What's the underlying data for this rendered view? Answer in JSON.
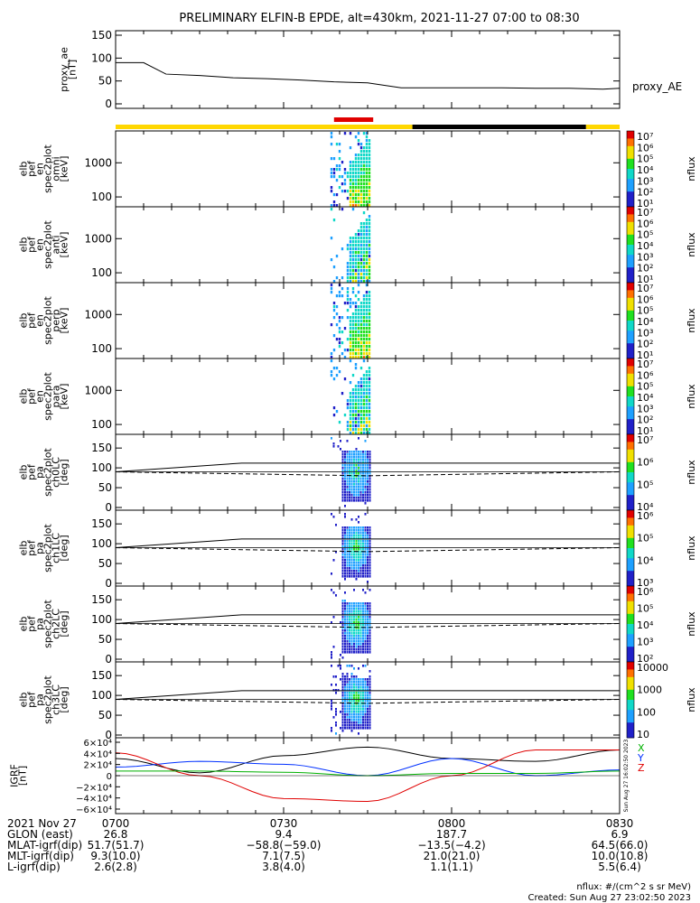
{
  "title": "PRELIMINARY ELFIN-B EPDE, alt=430km, 2021-11-27 07:00 to 08:30",
  "colors": {
    "sci_yellow": "#ffd700",
    "sci_black": "#000000",
    "sci_red": "#e00000",
    "igrf_x": "#000000",
    "igrf_y": "#0030ff",
    "igrf_z": "#e00000",
    "igrf_total": "#00b000"
  },
  "panels": {
    "ae": {
      "ylabel": [
        "proxy_ae",
        "[nT]"
      ],
      "yticks": [
        "150",
        "100",
        "50",
        "0"
      ],
      "legend": "proxy_AE"
    },
    "spec": [
      {
        "ylabel": [
          "elb",
          "pef",
          "en",
          "spec2plot",
          "omni",
          "[keV]"
        ],
        "yticks": [
          "1000",
          "100"
        ],
        "cbticks": [
          "10⁷",
          "10⁶",
          "10⁵",
          "10⁴",
          "10³",
          "10²",
          "10¹"
        ],
        "cblabel": "nflux"
      },
      {
        "ylabel": [
          "elb",
          "pef",
          "en",
          "spec2plot",
          "anti",
          "[keV]"
        ],
        "yticks": [
          "1000",
          "100"
        ],
        "cbticks": [
          "10⁷",
          "10⁶",
          "10⁵",
          "10⁴",
          "10³",
          "10²",
          "10¹"
        ],
        "cblabel": "nflux"
      },
      {
        "ylabel": [
          "elb",
          "pef",
          "en",
          "spec2plot",
          "perp",
          "[keV]"
        ],
        "yticks": [
          "1000",
          "100"
        ],
        "cbticks": [
          "10⁷",
          "10⁶",
          "10⁵",
          "10⁴",
          "10³",
          "10²",
          "10¹"
        ],
        "cblabel": "nflux"
      },
      {
        "ylabel": [
          "elb",
          "pef",
          "en",
          "spec2plot",
          "para",
          "[keV]"
        ],
        "yticks": [
          "1000",
          "100"
        ],
        "cbticks": [
          "10⁷",
          "10⁶",
          "10⁵",
          "10⁴",
          "10³",
          "10²",
          "10¹"
        ],
        "cblabel": "nflux"
      }
    ],
    "pa": [
      {
        "ylabel": [
          "elb",
          "pef",
          "pa",
          "spec2plot",
          "ch0LC",
          "[deg]"
        ],
        "yticks": [
          "150",
          "100",
          "50",
          "0"
        ],
        "cbticks": [
          "10⁷",
          "10⁶",
          "10⁵",
          "10⁴"
        ],
        "cblabel": "nflux"
      },
      {
        "ylabel": [
          "elb",
          "pef",
          "pa",
          "spec2plot",
          "ch1LC",
          "[deg]"
        ],
        "yticks": [
          "150",
          "100",
          "50",
          "0"
        ],
        "cbticks": [
          "10⁶",
          "10⁵",
          "10⁴",
          "10³"
        ],
        "cblabel": "nflux"
      },
      {
        "ylabel": [
          "elb",
          "pef",
          "pa",
          "spec2plot",
          "ch2LC",
          "[deg]"
        ],
        "yticks": [
          "150",
          "100",
          "50",
          "0"
        ],
        "cbticks": [
          "10⁶",
          "10⁵",
          "10⁴",
          "10³",
          "10²"
        ],
        "cblabel": "nflux"
      },
      {
        "ylabel": [
          "elb",
          "pef",
          "pa",
          "spec2plot",
          "ch3LC",
          "[deg]"
        ],
        "yticks": [
          "150",
          "100",
          "50",
          "0"
        ],
        "cbticks": [
          "10000",
          "1000",
          "100",
          "10"
        ],
        "cblabel": "nflux"
      }
    ],
    "igrf": {
      "ylabel": [
        "IGRF",
        "[nT]"
      ],
      "yticks": [
        "6×10⁴",
        "4×10⁴",
        "2×10⁴",
        "0",
        "−2×10⁴",
        "−4×10⁴",
        "−6×10⁴"
      ],
      "legend": [
        "X",
        "Y",
        "Z"
      ],
      "stamp": "Sun Aug 27 16:02:50 2023"
    }
  },
  "xaxis": {
    "labels": [
      "2021 Nov 27",
      "GLON (east)",
      "MLAT-igrf(dip)",
      "MLT-igrf(dip)",
      "L-igrf(dip)"
    ],
    "columns": [
      {
        "time": "0700",
        "glon": "26.8",
        "mlat": "51.7(51.7)",
        "mlt": "9.3(10.0)",
        "l": "2.6(2.8)"
      },
      {
        "time": "0730",
        "glon": "9.4",
        "mlat": "−58.8(−59.0)",
        "mlt": "7.1(7.5)",
        "l": "3.8(4.0)"
      },
      {
        "time": "0800",
        "glon": "187.7",
        "mlat": "−13.5(−4.2)",
        "mlt": "21.0(21.0)",
        "l": "1.1(1.1)"
      },
      {
        "time": "0830",
        "glon": "6.9",
        "mlat": "64.5(66.0)",
        "mlt": "10.0(10.8)",
        "l": "5.5(6.4)"
      }
    ]
  },
  "footer": {
    "units": "nflux: #/(cm^2 s sr MeV)",
    "created": "Created: Sun Aug 27 23:02:50 2023"
  },
  "chart_data": {
    "type": "line",
    "title": "PRELIMINARY ELFIN-B EPDE, alt=430km, 2021-11-27 07:00 to 08:30",
    "x_range": [
      "07:00",
      "08:30"
    ],
    "proxy_ae": {
      "ylim": [
        0,
        150
      ],
      "x": [
        "07:00",
        "07:05",
        "07:09",
        "07:15",
        "07:21",
        "07:27",
        "07:33",
        "07:39",
        "07:45",
        "07:51",
        "07:57",
        "08:03",
        "08:09",
        "08:15",
        "08:21",
        "08:27",
        "08:30"
      ],
      "values": [
        90,
        90,
        65,
        62,
        57,
        55,
        52,
        48,
        46,
        35,
        35,
        35,
        35,
        34,
        34,
        32,
        34
      ]
    },
    "science_bar": {
      "segments": [
        {
          "from": "07:00",
          "to": "07:53",
          "color": "yellow"
        },
        {
          "from": "07:53",
          "to": "08:24",
          "color": "black"
        },
        {
          "from": "08:24",
          "to": "08:30",
          "color": "yellow"
        }
      ],
      "highlight": {
        "from": "07:39",
        "to": "07:46",
        "color": "red"
      }
    },
    "energy_spectrograms": {
      "y_scale": "log",
      "y_unit": "keV",
      "color_scale": "log nflux",
      "active_interval": [
        "07:39",
        "07:45"
      ]
    },
    "pitch_angle_spectrograms": {
      "ylim": [
        0,
        180
      ],
      "upper_line_deg": [
        90,
        112,
        112,
        112,
        112
      ],
      "lower_line_deg": [
        90,
        85,
        80,
        85,
        90
      ],
      "active_interval": [
        "07:40",
        "07:45"
      ]
    },
    "igrf": {
      "ylim": [
        -60000,
        60000
      ],
      "x": [
        "07:00",
        "07:15",
        "07:30",
        "07:45",
        "08:00",
        "08:15",
        "08:30"
      ],
      "series": [
        {
          "name": "X",
          "values": [
            30000,
            5000,
            35000,
            50000,
            30000,
            25000,
            45000
          ]
        },
        {
          "name": "Y",
          "values": [
            15000,
            25000,
            20000,
            0,
            30000,
            0,
            10000
          ]
        },
        {
          "name": "Z",
          "values": [
            40000,
            0,
            -40000,
            -45000,
            0,
            45000,
            45000
          ]
        },
        {
          "values": [
            8000,
            8000,
            6000,
            0,
            4000,
            4000,
            8000
          ]
        }
      ]
    }
  }
}
